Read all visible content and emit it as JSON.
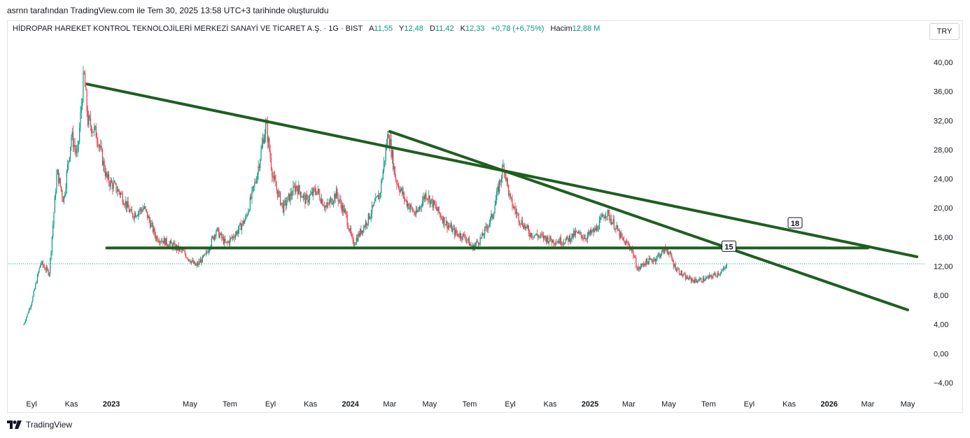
{
  "attribution": "asrnn tarafından TradingView.com ile Tem 30, 2025 13:58 UTC+3 tarihinde oluşturuldu",
  "legend": {
    "symbol": "HİDROPAR HAREKET KONTROL TEKNOLOJİLERİ MERKEZİ SANAYİ VE TİCARET A.Ş. · 1G · BIST",
    "open_label": "A",
    "open": "11,55",
    "high_label": "Y",
    "high": "12,48",
    "low_label": "D",
    "low": "11,42",
    "close_label": "K",
    "close": "12,33",
    "change": "+0,78 (+6,75%)",
    "volume_label": "Hacim",
    "volume": "12,88 M"
  },
  "currency": "TRY",
  "footer": {
    "brand": "TradingView"
  },
  "colors": {
    "up": "#089981",
    "down": "#f23645",
    "trendline": "#1e5e20",
    "text": "#131722"
  },
  "chart_data": {
    "type": "candlestick",
    "interval": "1G",
    "y_ticks": [
      "40,00",
      "36,00",
      "32,00",
      "28,00",
      "24,00",
      "20,00",
      "16,00",
      "12,00",
      "8,00",
      "4,00",
      "0,00",
      "−4,00"
    ],
    "y_tick_values": [
      40,
      36,
      32,
      28,
      24,
      20,
      16,
      12,
      8,
      4,
      0,
      -4
    ],
    "ylim": [
      -6,
      43
    ],
    "x_ticks": [
      "Eyl",
      "Kas",
      "2023",
      "May",
      "Tem",
      "Eyl",
      "Kas",
      "2024",
      "Mar",
      "May",
      "Tem",
      "Eyl",
      "Kas",
      "2025",
      "Mar",
      "May",
      "Tem",
      "Eyl",
      "Kas",
      "2026",
      "Mar",
      "May"
    ],
    "x_tick_dates": [
      "2022-09-01",
      "2022-11-01",
      "2023-01-01",
      "2023-05-01",
      "2023-07-01",
      "2023-09-01",
      "2023-11-01",
      "2024-01-01",
      "2024-03-01",
      "2024-05-01",
      "2024-07-01",
      "2024-09-01",
      "2024-11-01",
      "2025-01-01",
      "2025-03-01",
      "2025-05-01",
      "2025-07-01",
      "2025-09-01",
      "2025-11-01",
      "2026-01-01",
      "2026-03-01",
      "2026-05-01"
    ],
    "x_tick_bold": [
      "2023",
      "2024",
      "2025",
      "2026"
    ],
    "last_price": 12.33,
    "price_series": [
      {
        "date": "2022-08-20",
        "close": 4.0
      },
      {
        "date": "2022-09-01",
        "close": 7.0
      },
      {
        "date": "2022-09-15",
        "close": 12.5
      },
      {
        "date": "2022-09-28",
        "close": 11.0
      },
      {
        "date": "2022-10-10",
        "close": 25.0
      },
      {
        "date": "2022-10-20",
        "close": 21.0
      },
      {
        "date": "2022-11-01",
        "close": 30.0
      },
      {
        "date": "2022-11-10",
        "close": 27.0
      },
      {
        "date": "2022-11-20",
        "close": 38.5
      },
      {
        "date": "2022-11-26",
        "close": 32.0
      },
      {
        "date": "2022-12-10",
        "close": 30.0
      },
      {
        "date": "2022-12-25",
        "close": 24.0
      },
      {
        "date": "2023-01-15",
        "close": 22.0
      },
      {
        "date": "2023-02-01",
        "close": 19.0
      },
      {
        "date": "2023-02-20",
        "close": 20.0
      },
      {
        "date": "2023-03-10",
        "close": 16.0
      },
      {
        "date": "2023-04-01",
        "close": 15.0
      },
      {
        "date": "2023-04-20",
        "close": 14.0
      },
      {
        "date": "2023-05-10",
        "close": 12.0
      },
      {
        "date": "2023-05-25",
        "close": 13.5
      },
      {
        "date": "2023-06-10",
        "close": 17.0
      },
      {
        "date": "2023-06-25",
        "close": 15.0
      },
      {
        "date": "2023-07-10",
        "close": 16.5
      },
      {
        "date": "2023-07-25",
        "close": 18.5
      },
      {
        "date": "2023-08-10",
        "close": 24.0
      },
      {
        "date": "2023-08-25",
        "close": 31.5
      },
      {
        "date": "2023-09-05",
        "close": 24.0
      },
      {
        "date": "2023-09-20",
        "close": 20.0
      },
      {
        "date": "2023-10-10",
        "close": 23.0
      },
      {
        "date": "2023-10-25",
        "close": 21.0
      },
      {
        "date": "2023-11-10",
        "close": 22.5
      },
      {
        "date": "2023-11-25",
        "close": 20.0
      },
      {
        "date": "2023-12-10",
        "close": 22.0
      },
      {
        "date": "2023-12-25",
        "close": 19.0
      },
      {
        "date": "2024-01-05",
        "close": 15.0
      },
      {
        "date": "2024-01-25",
        "close": 18.0
      },
      {
        "date": "2024-02-15",
        "close": 22.0
      },
      {
        "date": "2024-02-28",
        "close": 30.5
      },
      {
        "date": "2024-03-10",
        "close": 24.0
      },
      {
        "date": "2024-03-25",
        "close": 21.0
      },
      {
        "date": "2024-04-10",
        "close": 19.0
      },
      {
        "date": "2024-04-25",
        "close": 22.0
      },
      {
        "date": "2024-05-10",
        "close": 20.0
      },
      {
        "date": "2024-05-25",
        "close": 18.0
      },
      {
        "date": "2024-06-10",
        "close": 16.5
      },
      {
        "date": "2024-06-25",
        "close": 16.0
      },
      {
        "date": "2024-07-05",
        "close": 14.5
      },
      {
        "date": "2024-07-20",
        "close": 16.0
      },
      {
        "date": "2024-08-05",
        "close": 19.0
      },
      {
        "date": "2024-08-22",
        "close": 26.0
      },
      {
        "date": "2024-09-01",
        "close": 21.0
      },
      {
        "date": "2024-09-15",
        "close": 18.5
      },
      {
        "date": "2024-10-01",
        "close": 16.5
      },
      {
        "date": "2024-10-20",
        "close": 16.0
      },
      {
        "date": "2024-11-05",
        "close": 15.5
      },
      {
        "date": "2024-11-25",
        "close": 15.5
      },
      {
        "date": "2024-12-10",
        "close": 16.5
      },
      {
        "date": "2024-12-25",
        "close": 16.0
      },
      {
        "date": "2025-01-10",
        "close": 17.0
      },
      {
        "date": "2025-01-25",
        "close": 19.5
      },
      {
        "date": "2025-02-05",
        "close": 18.0
      },
      {
        "date": "2025-02-20",
        "close": 15.5
      },
      {
        "date": "2025-03-05",
        "close": 14.5
      },
      {
        "date": "2025-03-15",
        "close": 11.5
      },
      {
        "date": "2025-03-25",
        "close": 12.5
      },
      {
        "date": "2025-04-10",
        "close": 13.0
      },
      {
        "date": "2025-04-28",
        "close": 14.5
      },
      {
        "date": "2025-05-10",
        "close": 12.0
      },
      {
        "date": "2025-05-25",
        "close": 10.5
      },
      {
        "date": "2025-06-10",
        "close": 10.0
      },
      {
        "date": "2025-06-25",
        "close": 10.2
      },
      {
        "date": "2025-07-10",
        "close": 10.8
      },
      {
        "date": "2025-07-25",
        "close": 11.5
      },
      {
        "date": "2025-07-30",
        "close": 12.33
      }
    ],
    "drawings": [
      {
        "name": "descending-trendline-long",
        "start": {
          "date": "2022-11-25",
          "value": 37.0
        },
        "end": {
          "date": "2026-05-15",
          "value": 13.3
        }
      },
      {
        "name": "descending-trendline-short",
        "start": {
          "date": "2024-03-01",
          "value": 30.5
        },
        "end": {
          "date": "2026-05-01",
          "value": 6.0
        }
      },
      {
        "name": "horizontal-support",
        "start": {
          "date": "2022-12-25",
          "value": 14.5
        },
        "end": {
          "date": "2026-03-01",
          "value": 14.5
        }
      }
    ],
    "annotations": [
      {
        "text": "18",
        "date": "2025-11-10",
        "value": 17.9
      },
      {
        "text": "15",
        "date": "2025-08-01",
        "value": 14.7
      }
    ]
  }
}
